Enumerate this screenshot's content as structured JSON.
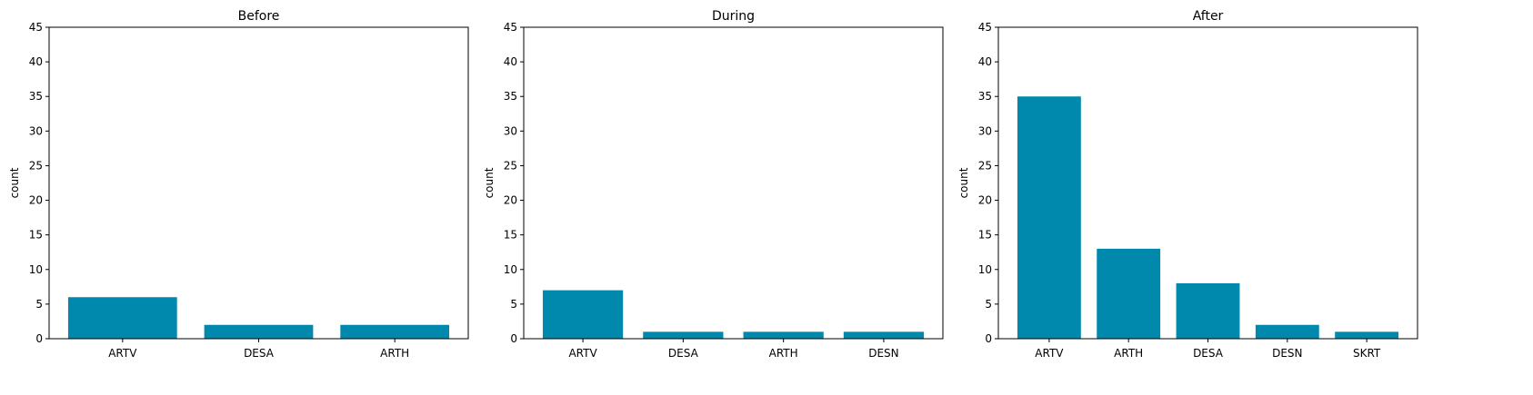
{
  "bar_color": "#0088AD",
  "chart_data": [
    {
      "type": "bar",
      "title": "Before",
      "xlabel": "",
      "ylabel": "count",
      "ylim": [
        0,
        45
      ],
      "yticks": [
        0,
        5,
        10,
        15,
        20,
        25,
        30,
        35,
        40,
        45
      ],
      "categories": [
        "ARTV",
        "DESA",
        "ARTH"
      ],
      "values": [
        6,
        2,
        2
      ]
    },
    {
      "type": "bar",
      "title": "During",
      "xlabel": "",
      "ylabel": "count",
      "ylim": [
        0,
        45
      ],
      "yticks": [
        0,
        5,
        10,
        15,
        20,
        25,
        30,
        35,
        40,
        45
      ],
      "categories": [
        "ARTV",
        "DESA",
        "ARTH",
        "DESN"
      ],
      "values": [
        7,
        1,
        1,
        1
      ]
    },
    {
      "type": "bar",
      "title": "After",
      "xlabel": "",
      "ylabel": "count",
      "ylim": [
        0,
        45
      ],
      "yticks": [
        0,
        5,
        10,
        15,
        20,
        25,
        30,
        35,
        40,
        45
      ],
      "categories": [
        "ARTV",
        "ARTH",
        "DESA",
        "DESN",
        "SKRT"
      ],
      "values": [
        35,
        13,
        8,
        2,
        1
      ]
    }
  ]
}
